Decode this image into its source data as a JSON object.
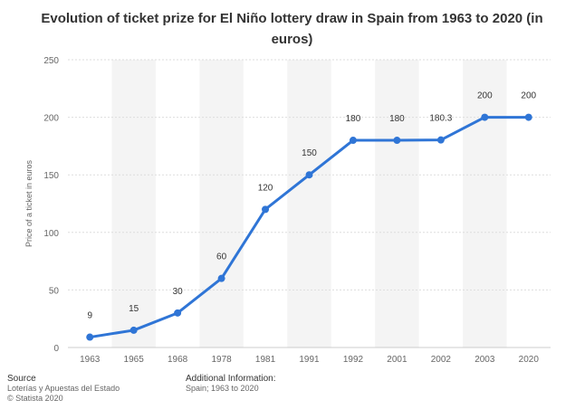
{
  "chart_data": {
    "type": "line",
    "title": "Evolution of ticket prize for El Niño lottery draw in Spain from 1963 to 2020 (in euros)",
    "xlabel": "",
    "ylabel": "Price of a ticket in euros",
    "categories": [
      "1963",
      "1965",
      "1968",
      "1978",
      "1981",
      "1991",
      "1992",
      "2001",
      "2002",
      "2003",
      "2020"
    ],
    "series": [
      {
        "name": "Price of a ticket in euros",
        "values": [
          9,
          15,
          30,
          60,
          120,
          150,
          180,
          180,
          180.3,
          200,
          200
        ],
        "labels": [
          "9",
          "15",
          "30",
          "60",
          "120",
          "150",
          "180",
          "180",
          "180.3",
          "200",
          "200"
        ]
      }
    ],
    "ylim": [
      0,
      250
    ],
    "yticks": [
      0,
      50,
      100,
      150,
      200,
      250
    ],
    "grid": true,
    "line_color": "#2f75d6"
  },
  "footer": {
    "source_heading": "Source",
    "source_line": "Loterías y Apuestas del Estado",
    "copyright": "© Statista 2020",
    "additional_heading": "Additional Information:",
    "additional_line": "Spain; 1963 to 2020"
  }
}
